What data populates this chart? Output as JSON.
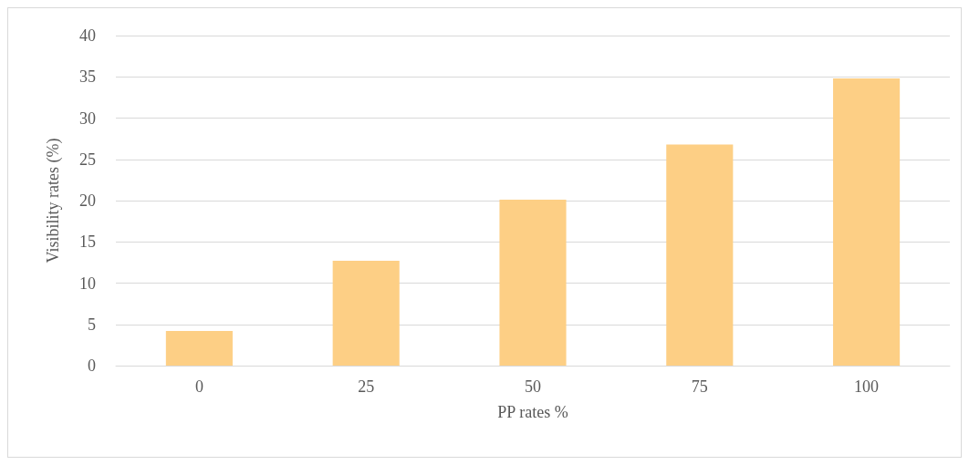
{
  "chart_data": {
    "type": "bar",
    "xlabel": "PP rates %",
    "ylabel": "Visibility rates (%)",
    "categories": [
      "0",
      "25",
      "50",
      "75",
      "100"
    ],
    "values": [
      4.2,
      12.7,
      20.1,
      26.8,
      34.8
    ],
    "color": "#fdcf85",
    "ylim": [
      0,
      40
    ],
    "yticks": [
      0,
      5,
      10,
      15,
      20,
      25,
      30,
      35,
      40
    ],
    "grid": "y"
  }
}
